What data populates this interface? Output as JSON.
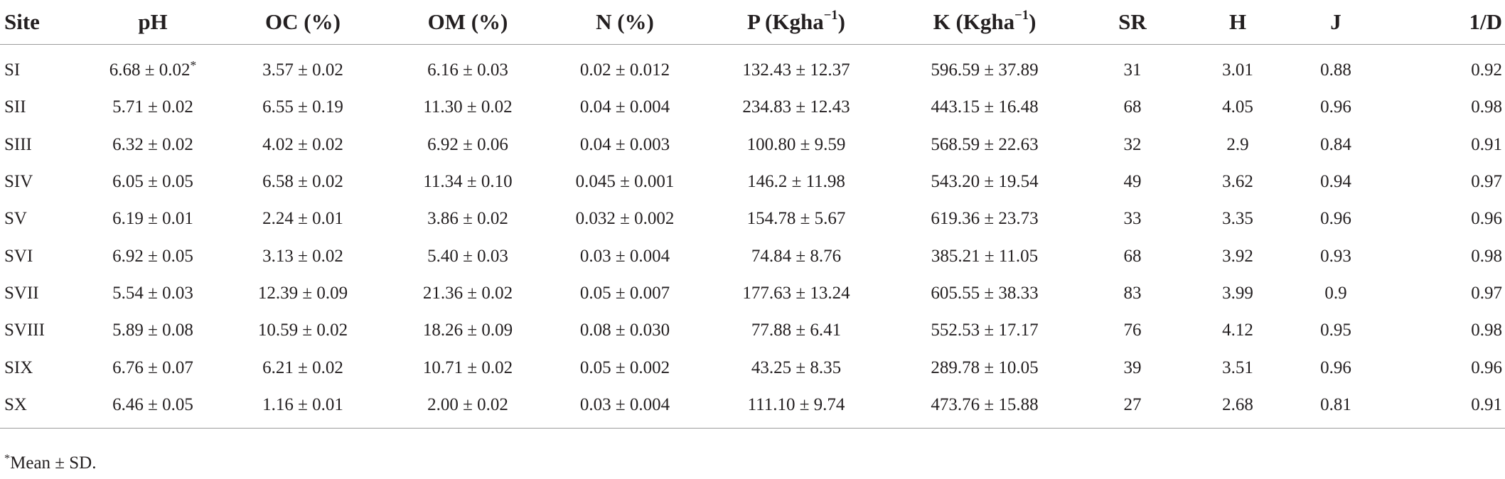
{
  "table": {
    "headers": {
      "site": "Site",
      "ph": "pH",
      "oc": "OC (%)",
      "om": "OM (%)",
      "n": "N (%)",
      "p_base": "P (Kgha",
      "p_exp": "−1",
      "p_close": ")",
      "k_base": "K (Kgha",
      "k_exp": "−1",
      "k_close": ")",
      "sr": "SR",
      "h": "H",
      "j": "J",
      "d": "1/D"
    },
    "rows": [
      {
        "site": "SI",
        "ph": "6.68 ± 0.02",
        "ph_mark": "*",
        "oc": "3.57 ± 0.02",
        "om": "6.16 ± 0.03",
        "n": "0.02 ± 0.012",
        "p": "132.43 ± 12.37",
        "k": "596.59 ± 37.89",
        "sr": "31",
        "h": "3.01",
        "j": "0.88",
        "d": "0.92"
      },
      {
        "site": "SII",
        "ph": "5.71 ± 0.02",
        "ph_mark": "",
        "oc": "6.55 ± 0.19",
        "om": "11.30 ± 0.02",
        "n": "0.04 ± 0.004",
        "p": "234.83 ± 12.43",
        "k": "443.15 ± 16.48",
        "sr": "68",
        "h": "4.05",
        "j": "0.96",
        "d": "0.98"
      },
      {
        "site": "SIII",
        "ph": "6.32 ± 0.02",
        "ph_mark": "",
        "oc": "4.02 ± 0.02",
        "om": "6.92 ± 0.06",
        "n": "0.04 ± 0.003",
        "p": "100.80 ± 9.59",
        "k": "568.59 ± 22.63",
        "sr": "32",
        "h": "2.9",
        "j": "0.84",
        "d": "0.91"
      },
      {
        "site": "SIV",
        "ph": "6.05 ± 0.05",
        "ph_mark": "",
        "oc": "6.58 ± 0.02",
        "om": "11.34 ± 0.10",
        "n": "0.045 ± 0.001",
        "p": "146.2 ± 11.98",
        "k": "543.20 ± 19.54",
        "sr": "49",
        "h": "3.62",
        "j": "0.94",
        "d": "0.97"
      },
      {
        "site": "SV",
        "ph": "6.19 ± 0.01",
        "ph_mark": "",
        "oc": "2.24 ± 0.01",
        "om": "3.86 ± 0.02",
        "n": "0.032 ± 0.002",
        "p": "154.78 ± 5.67",
        "k": "619.36 ± 23.73",
        "sr": "33",
        "h": "3.35",
        "j": "0.96",
        "d": "0.96"
      },
      {
        "site": "SVI",
        "ph": "6.92 ± 0.05",
        "ph_mark": "",
        "oc": "3.13 ± 0.02",
        "om": "5.40 ± 0.03",
        "n": "0.03 ± 0.004",
        "p": "74.84 ± 8.76",
        "k": "385.21 ± 11.05",
        "sr": "68",
        "h": "3.92",
        "j": "0.93",
        "d": "0.98"
      },
      {
        "site": "SVII",
        "ph": "5.54 ± 0.03",
        "ph_mark": "",
        "oc": "12.39 ± 0.09",
        "om": "21.36 ± 0.02",
        "n": "0.05 ± 0.007",
        "p": "177.63 ± 13.24",
        "k": "605.55 ± 38.33",
        "sr": "83",
        "h": "3.99",
        "j": "0.9",
        "d": "0.97"
      },
      {
        "site": "SVIII",
        "ph": "5.89 ± 0.08",
        "ph_mark": "",
        "oc": "10.59 ± 0.02",
        "om": "18.26 ± 0.09",
        "n": "0.08 ± 0.030",
        "p": "77.88 ± 6.41",
        "k": "552.53 ± 17.17",
        "sr": "76",
        "h": "4.12",
        "j": "0.95",
        "d": "0.98"
      },
      {
        "site": "SIX",
        "ph": "6.76 ± 0.07",
        "ph_mark": "",
        "oc": "6.21 ± 0.02",
        "om": "10.71 ± 0.02",
        "n": "0.05 ± 0.002",
        "p": "43.25 ± 8.35",
        "k": "289.78 ± 10.05",
        "sr": "39",
        "h": "3.51",
        "j": "0.96",
        "d": "0.96"
      },
      {
        "site": "SX",
        "ph": "6.46 ± 0.05",
        "ph_mark": "",
        "oc": "1.16 ± 0.01",
        "om": "2.00 ± 0.02",
        "n": "0.03 ± 0.004",
        "p": "111.10 ± 9.74",
        "k": "473.76 ± 15.88",
        "sr": "27",
        "h": "2.68",
        "j": "0.81",
        "d": "0.91"
      }
    ]
  },
  "footnote": {
    "mark": "*",
    "text": "Mean ± SD."
  }
}
